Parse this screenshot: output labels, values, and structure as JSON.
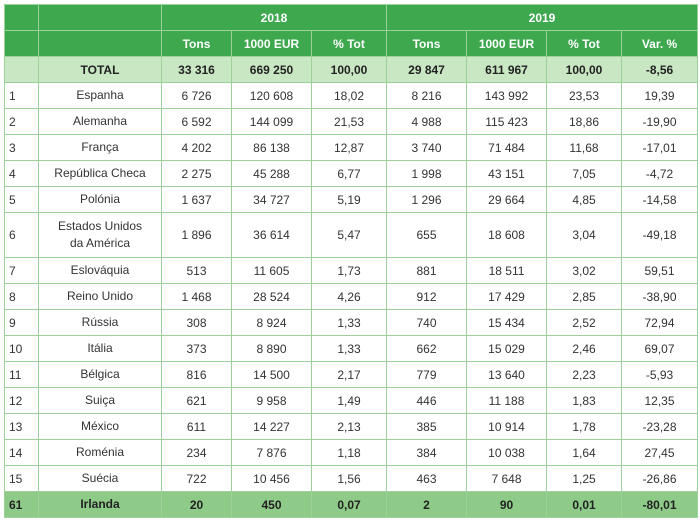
{
  "table": {
    "years": [
      "2018",
      "2019"
    ],
    "columns": [
      "Tons",
      "1000 EUR",
      "% Tot",
      "Tons",
      "1000 EUR",
      "% Tot",
      "Var. %"
    ],
    "total": {
      "label": "TOTAL",
      "values": [
        "33 316",
        "669 250",
        "100,00",
        "29 847",
        "611 967",
        "100,00",
        "-8,56"
      ]
    },
    "rows": [
      [
        "1",
        "Espanha",
        "6 726",
        "120 608",
        "18,02",
        "8 216",
        "143 992",
        "23,53",
        "19,39"
      ],
      [
        "2",
        "Alemanha",
        "6 592",
        "144 099",
        "21,53",
        "4 988",
        "115 423",
        "18,86",
        "-19,90"
      ],
      [
        "3",
        "França",
        "4 202",
        "86 138",
        "12,87",
        "3 740",
        "71 484",
        "11,68",
        "-17,01"
      ],
      [
        "4",
        "República Checa",
        "2 275",
        "45 288",
        "6,77",
        "1 998",
        "43 151",
        "7,05",
        "-4,72"
      ],
      [
        "5",
        "Polónia",
        "1 637",
        "34 727",
        "5,19",
        "1 296",
        "29 664",
        "4,85",
        "-14,58"
      ],
      [
        "6",
        "Estados Unidos da América",
        "1 896",
        "36 614",
        "5,47",
        "655",
        "18 608",
        "3,04",
        "-49,18"
      ],
      [
        "7",
        "Eslováquia",
        "513",
        "11 605",
        "1,73",
        "881",
        "18 511",
        "3,02",
        "59,51"
      ],
      [
        "8",
        "Reino Unido",
        "1 468",
        "28 524",
        "4,26",
        "912",
        "17 429",
        "2,85",
        "-38,90"
      ],
      [
        "9",
        "Rússia",
        "308",
        "8 924",
        "1,33",
        "740",
        "15 434",
        "2,52",
        "72,94"
      ],
      [
        "10",
        "Itália",
        "373",
        "8 890",
        "1,33",
        "662",
        "15 029",
        "2,46",
        "69,07"
      ],
      [
        "11",
        "Bélgica",
        "816",
        "14 500",
        "2,17",
        "779",
        "13 640",
        "2,23",
        "-5,93"
      ],
      [
        "12",
        "Suiça",
        "621",
        "9 958",
        "1,49",
        "446",
        "11 188",
        "1,83",
        "12,35"
      ],
      [
        "13",
        "México",
        "611",
        "14 227",
        "2,13",
        "385",
        "10 914",
        "1,78",
        "-23,28"
      ],
      [
        "14",
        "Roménia",
        "234",
        "7 876",
        "1,18",
        "384",
        "10 038",
        "1,64",
        "27,45"
      ],
      [
        "15",
        "Suécia",
        "722",
        "10 456",
        "1,56",
        "463",
        "7 648",
        "1,25",
        "-26,86"
      ],
      [
        "61",
        "Irlanda",
        "20",
        "450",
        "0,07",
        "2",
        "90",
        "0,01",
        "-80,01"
      ]
    ]
  }
}
